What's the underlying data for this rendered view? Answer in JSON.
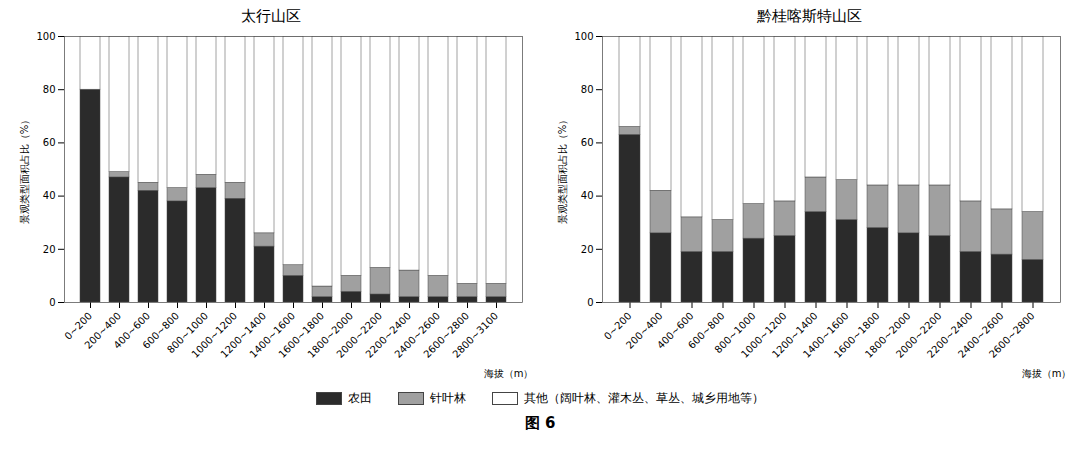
{
  "chart_data": [
    {
      "type": "bar",
      "stacked": true,
      "title": "太行山区",
      "xlabel": "海拔（m）",
      "ylabel": "景观类型面积占比（%）",
      "categories": [
        "0~200",
        "200~400",
        "400~600",
        "600~800",
        "800~1000",
        "1000~1200",
        "1200~1400",
        "1400~1600",
        "1600~1800",
        "1800~2000",
        "2000~2200",
        "2200~2400",
        "2400~2600",
        "2600~2800",
        "2800~3100"
      ],
      "series": [
        {
          "name": "农田",
          "color": "#2b2b2b",
          "values": [
            80,
            47,
            42,
            38,
            43,
            39,
            21,
            10,
            2,
            4,
            3,
            2,
            2,
            2,
            2
          ]
        },
        {
          "name": "针叶林",
          "color": "#a0a0a0",
          "values": [
            0,
            2,
            3,
            5,
            5,
            6,
            5,
            4,
            4,
            6,
            10,
            10,
            8,
            5,
            5
          ]
        },
        {
          "name": "其他（阔叶林、灌木丛、草丛、城乡用地等）",
          "color": "#ffffff",
          "values": [
            20,
            51,
            55,
            57,
            52,
            55,
            74,
            86,
            94,
            90,
            87,
            88,
            90,
            93,
            93
          ]
        }
      ],
      "ylim": [
        0,
        100
      ],
      "yticks": [
        0,
        20,
        40,
        60,
        80,
        100
      ],
      "grid": false,
      "legend": "bottom"
    },
    {
      "type": "bar",
      "stacked": true,
      "title": "黔桂喀斯特山区",
      "xlabel": "海拔（m）",
      "ylabel": "景观类型面积占比（%）",
      "categories": [
        "0~200",
        "200~400",
        "400~600",
        "600~800",
        "800~1000",
        "1000~1200",
        "1200~1400",
        "1400~1600",
        "1600~1800",
        "1800~2000",
        "2000~2200",
        "2200~2400",
        "2400~2600",
        "2600~2800"
      ],
      "series": [
        {
          "name": "农田",
          "color": "#2b2b2b",
          "values": [
            63,
            26,
            19,
            19,
            24,
            25,
            34,
            31,
            28,
            26,
            25,
            19,
            18,
            16
          ]
        },
        {
          "name": "针叶林",
          "color": "#a0a0a0",
          "values": [
            3,
            16,
            13,
            12,
            13,
            13,
            13,
            15,
            16,
            18,
            19,
            19,
            17,
            18
          ]
        },
        {
          "name": "其他（阔叶林、灌木丛、草丛、城乡用地等）",
          "color": "#ffffff",
          "values": [
            34,
            58,
            68,
            69,
            63,
            62,
            53,
            54,
            56,
            56,
            56,
            62,
            65,
            66
          ]
        }
      ],
      "ylim": [
        0,
        100
      ],
      "yticks": [
        0,
        20,
        40,
        60,
        80,
        100
      ],
      "grid": false,
      "legend": "bottom"
    }
  ],
  "caption": "图 6"
}
